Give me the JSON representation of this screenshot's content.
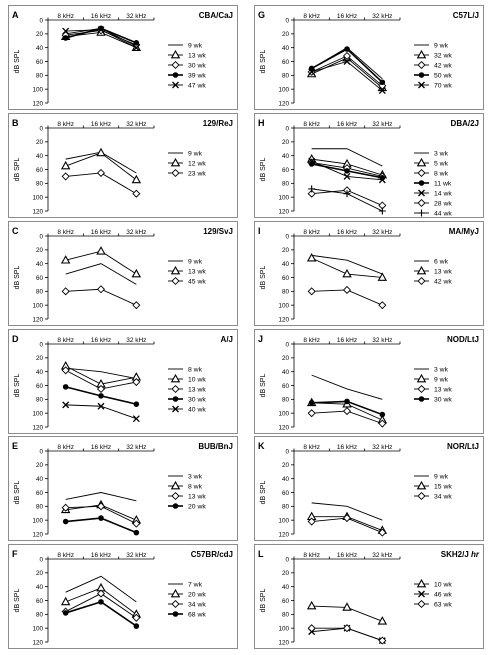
{
  "figure": {
    "x_categories": [
      "8 kHz",
      "16 kHz",
      "32 kHz"
    ],
    "y_axis_label": "dB SPL",
    "y_ticks": [
      0,
      20,
      40,
      60,
      80,
      100,
      120
    ]
  },
  "chart_data": [
    {
      "type": "line",
      "panel": "A",
      "title": "CBA/CaJ",
      "categories": [
        "8 kHz",
        "16 kHz",
        "32 kHz"
      ],
      "ylabel": "dB SPL",
      "ylim": [
        0,
        120
      ],
      "y_inverted": true,
      "series": [
        {
          "name": "9 wk",
          "marker": "none",
          "values": [
            20,
            12,
            38
          ]
        },
        {
          "name": "13 wk",
          "marker": "triangle",
          "values": [
            24,
            18,
            40
          ]
        },
        {
          "name": "30 wk",
          "marker": "diamond",
          "values": [
            22,
            15,
            36
          ]
        },
        {
          "name": "39 wk",
          "marker": "circle",
          "values": [
            26,
            12,
            33
          ]
        },
        {
          "name": "47 wk",
          "marker": "x",
          "values": [
            16,
            14,
            40
          ]
        }
      ]
    },
    {
      "type": "line",
      "panel": "B",
      "title": "129/ReJ",
      "categories": [
        "8 kHz",
        "16 kHz",
        "32 kHz"
      ],
      "ylabel": "dB SPL",
      "ylim": [
        0,
        120
      ],
      "y_inverted": true,
      "series": [
        {
          "name": "9 wk",
          "marker": "none",
          "values": [
            45,
            35,
            65
          ]
        },
        {
          "name": "12 wk",
          "marker": "triangle",
          "values": [
            55,
            36,
            75
          ]
        },
        {
          "name": "23 wk",
          "marker": "diamond",
          "values": [
            70,
            65,
            95
          ]
        }
      ]
    },
    {
      "type": "line",
      "panel": "C",
      "title": "129/SvJ",
      "categories": [
        "8 kHz",
        "16 kHz",
        "32 kHz"
      ],
      "ylabel": "dB SPL",
      "ylim": [
        0,
        120
      ],
      "y_inverted": true,
      "series": [
        {
          "name": "9 wk",
          "marker": "none",
          "values": [
            55,
            40,
            70
          ]
        },
        {
          "name": "13 wk",
          "marker": "triangle",
          "values": [
            35,
            22,
            55
          ]
        },
        {
          "name": "45 wk",
          "marker": "diamond",
          "values": [
            80,
            77,
            100
          ]
        }
      ]
    },
    {
      "type": "line",
      "panel": "D",
      "title": "A/J",
      "categories": [
        "8 kHz",
        "16 kHz",
        "32 kHz"
      ],
      "ylabel": "dB SPL",
      "ylim": [
        0,
        120
      ],
      "y_inverted": true,
      "series": [
        {
          "name": "8 wk",
          "marker": "none",
          "values": [
            35,
            40,
            50
          ]
        },
        {
          "name": "10 wk",
          "marker": "triangle",
          "values": [
            32,
            58,
            48
          ]
        },
        {
          "name": "13 wk",
          "marker": "diamond",
          "values": [
            38,
            65,
            55
          ]
        },
        {
          "name": "30 wk",
          "marker": "circle",
          "values": [
            62,
            75,
            87
          ]
        },
        {
          "name": "40 wk",
          "marker": "x",
          "values": [
            88,
            90,
            108
          ]
        }
      ]
    },
    {
      "type": "line",
      "panel": "E",
      "title": "BUB/BnJ",
      "categories": [
        "8 kHz",
        "16 kHz",
        "32 kHz"
      ],
      "ylabel": "dB SPL",
      "ylim": [
        0,
        120
      ],
      "y_inverted": true,
      "series": [
        {
          "name": "3 wk",
          "marker": "none",
          "values": [
            70,
            60,
            72
          ]
        },
        {
          "name": "8 wk",
          "marker": "triangle",
          "values": [
            85,
            78,
            100
          ]
        },
        {
          "name": "13 wk",
          "marker": "diamond",
          "values": [
            82,
            80,
            105
          ]
        },
        {
          "name": "20 wk",
          "marker": "circle",
          "values": [
            102,
            97,
            118
          ]
        }
      ]
    },
    {
      "type": "line",
      "panel": "F",
      "title": "C57BR/cdJ",
      "categories": [
        "8 kHz",
        "16 kHz",
        "32 kHz"
      ],
      "ylabel": "dB SPL",
      "ylim": [
        0,
        120
      ],
      "y_inverted": true,
      "series": [
        {
          "name": "7 wk",
          "marker": "none",
          "values": [
            48,
            25,
            62
          ]
        },
        {
          "name": "20 wk",
          "marker": "triangle",
          "values": [
            62,
            42,
            80
          ]
        },
        {
          "name": "34 wk",
          "marker": "diamond",
          "values": [
            76,
            50,
            85
          ]
        },
        {
          "name": "68 wk",
          "marker": "circle",
          "values": [
            78,
            62,
            97
          ]
        }
      ]
    },
    {
      "type": "line",
      "panel": "G",
      "title": "C57L/J",
      "categories": [
        "8 kHz",
        "16 kHz",
        "32 kHz"
      ],
      "ylabel": "dB SPL",
      "ylim": [
        0,
        120
      ],
      "y_inverted": true,
      "series": [
        {
          "name": "9 wk",
          "marker": "none",
          "values": [
            70,
            40,
            85
          ]
        },
        {
          "name": "32 wk",
          "marker": "triangle",
          "values": [
            78,
            55,
            98
          ]
        },
        {
          "name": "42 wk",
          "marker": "diamond",
          "values": [
            75,
            52,
            95
          ]
        },
        {
          "name": "50 wk",
          "marker": "circle",
          "values": [
            70,
            42,
            90
          ]
        },
        {
          "name": "70 wk",
          "marker": "x",
          "values": [
            75,
            60,
            102
          ]
        }
      ]
    },
    {
      "type": "line",
      "panel": "H",
      "title": "DBA/2J",
      "categories": [
        "8 kHz",
        "16 kHz",
        "32 kHz"
      ],
      "ylabel": "dB SPL",
      "ylim": [
        0,
        120
      ],
      "y_inverted": true,
      "series": [
        {
          "name": "3 wk",
          "marker": "none",
          "values": [
            30,
            30,
            55
          ]
        },
        {
          "name": "5 wk",
          "marker": "triangle",
          "values": [
            45,
            52,
            68
          ]
        },
        {
          "name": "8 wk",
          "marker": "diamond",
          "values": [
            50,
            58,
            70
          ]
        },
        {
          "name": "11 wk",
          "marker": "circle",
          "values": [
            52,
            62,
            72
          ]
        },
        {
          "name": "14 wk",
          "marker": "x",
          "values": [
            48,
            70,
            75
          ]
        },
        {
          "name": "28 wk",
          "marker": "diamond",
          "values": [
            95,
            90,
            112
          ]
        },
        {
          "name": "44 wk",
          "marker": "plus",
          "values": [
            88,
            95,
            120
          ]
        }
      ]
    },
    {
      "type": "line",
      "panel": "I",
      "title": "MA/MyJ",
      "categories": [
        "8 kHz",
        "16 kHz",
        "32 kHz"
      ],
      "ylabel": "dB SPL",
      "ylim": [
        0,
        120
      ],
      "y_inverted": true,
      "series": [
        {
          "name": "6 wk",
          "marker": "none",
          "values": [
            28,
            35,
            55
          ]
        },
        {
          "name": "13 wk",
          "marker": "triangle",
          "values": [
            32,
            55,
            60
          ]
        },
        {
          "name": "42 wk",
          "marker": "diamond",
          "values": [
            80,
            78,
            100
          ]
        }
      ]
    },
    {
      "type": "line",
      "panel": "J",
      "title": "NOD/LtJ",
      "categories": [
        "8 kHz",
        "16 kHz",
        "32 kHz"
      ],
      "ylabel": "dB SPL",
      "ylim": [
        0,
        120
      ],
      "y_inverted": true,
      "series": [
        {
          "name": "3 wk",
          "marker": "none",
          "values": [
            45,
            65,
            80
          ]
        },
        {
          "name": "9 wk",
          "marker": "triangle",
          "values": [
            85,
            87,
            110
          ]
        },
        {
          "name": "13 wk",
          "marker": "diamond",
          "values": [
            100,
            97,
            115
          ]
        },
        {
          "name": "30 wk",
          "marker": "circle",
          "values": [
            85,
            83,
            102
          ]
        }
      ]
    },
    {
      "type": "line",
      "panel": "K",
      "title": "NOR/LtJ",
      "categories": [
        "8 kHz",
        "16 kHz",
        "32 kHz"
      ],
      "ylabel": "dB SPL",
      "ylim": [
        0,
        120
      ],
      "y_inverted": true,
      "series": [
        {
          "name": "9 wk",
          "marker": "none",
          "values": [
            75,
            80,
            100
          ]
        },
        {
          "name": "15 wk",
          "marker": "triangle",
          "values": [
            95,
            95,
            115
          ]
        },
        {
          "name": "34 wk",
          "marker": "diamond",
          "values": [
            102,
            97,
            118
          ]
        }
      ]
    },
    {
      "type": "line",
      "panel": "L",
      "title": "SKH2/J",
      "title_suffix": "hr",
      "categories": [
        "8 kHz",
        "16 kHz",
        "32 kHz"
      ],
      "ylabel": "dB SPL",
      "ylim": [
        0,
        120
      ],
      "y_inverted": true,
      "series": [
        {
          "name": "10 wk",
          "marker": "triangle",
          "values": [
            68,
            70,
            90
          ]
        },
        {
          "name": "46 wk",
          "marker": "x",
          "values": [
            105,
            100,
            118
          ]
        },
        {
          "name": "63 wk",
          "marker": "diamond",
          "values": [
            100,
            100,
            118
          ]
        }
      ]
    }
  ]
}
